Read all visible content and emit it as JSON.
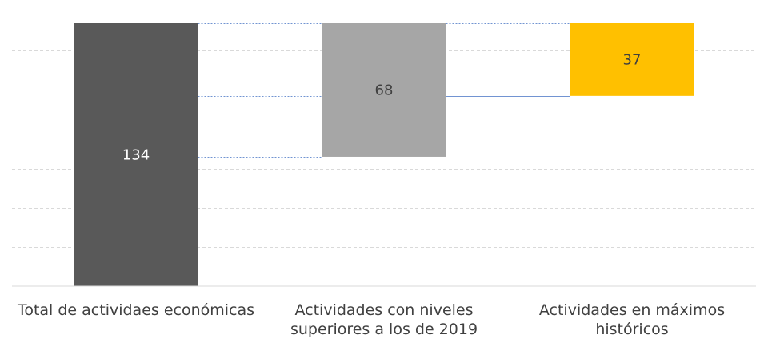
{
  "chart_data": {
    "type": "bar",
    "subtype": "waterfall",
    "categories": [
      "Total de actividaes económicas",
      "Actividades con niveles superiores a los de 2019",
      "Actividades en máximos históricos"
    ],
    "category_label_lines": [
      [
        "Total de actividaes económicas"
      ],
      [
        "Actividades con niveles",
        "superiores a los de 2019"
      ],
      [
        "Actividades en máximos",
        "históricos"
      ]
    ],
    "values": [
      134,
      68,
      37
    ],
    "bar_colors": [
      "#595959",
      "#a6a6a6",
      "#ffc000"
    ],
    "data_label_colors": [
      "#ffffff",
      "#404040",
      "#404040"
    ],
    "ylim": [
      0,
      134
    ],
    "y_gridlines": [
      0,
      20,
      40,
      60,
      80,
      100,
      120
    ],
    "grid": "dashed horizontal",
    "connector_lines": true,
    "axis_tick_labels_visible": false,
    "legend": "none",
    "title": "",
    "xlabel": "",
    "ylabel": ""
  }
}
